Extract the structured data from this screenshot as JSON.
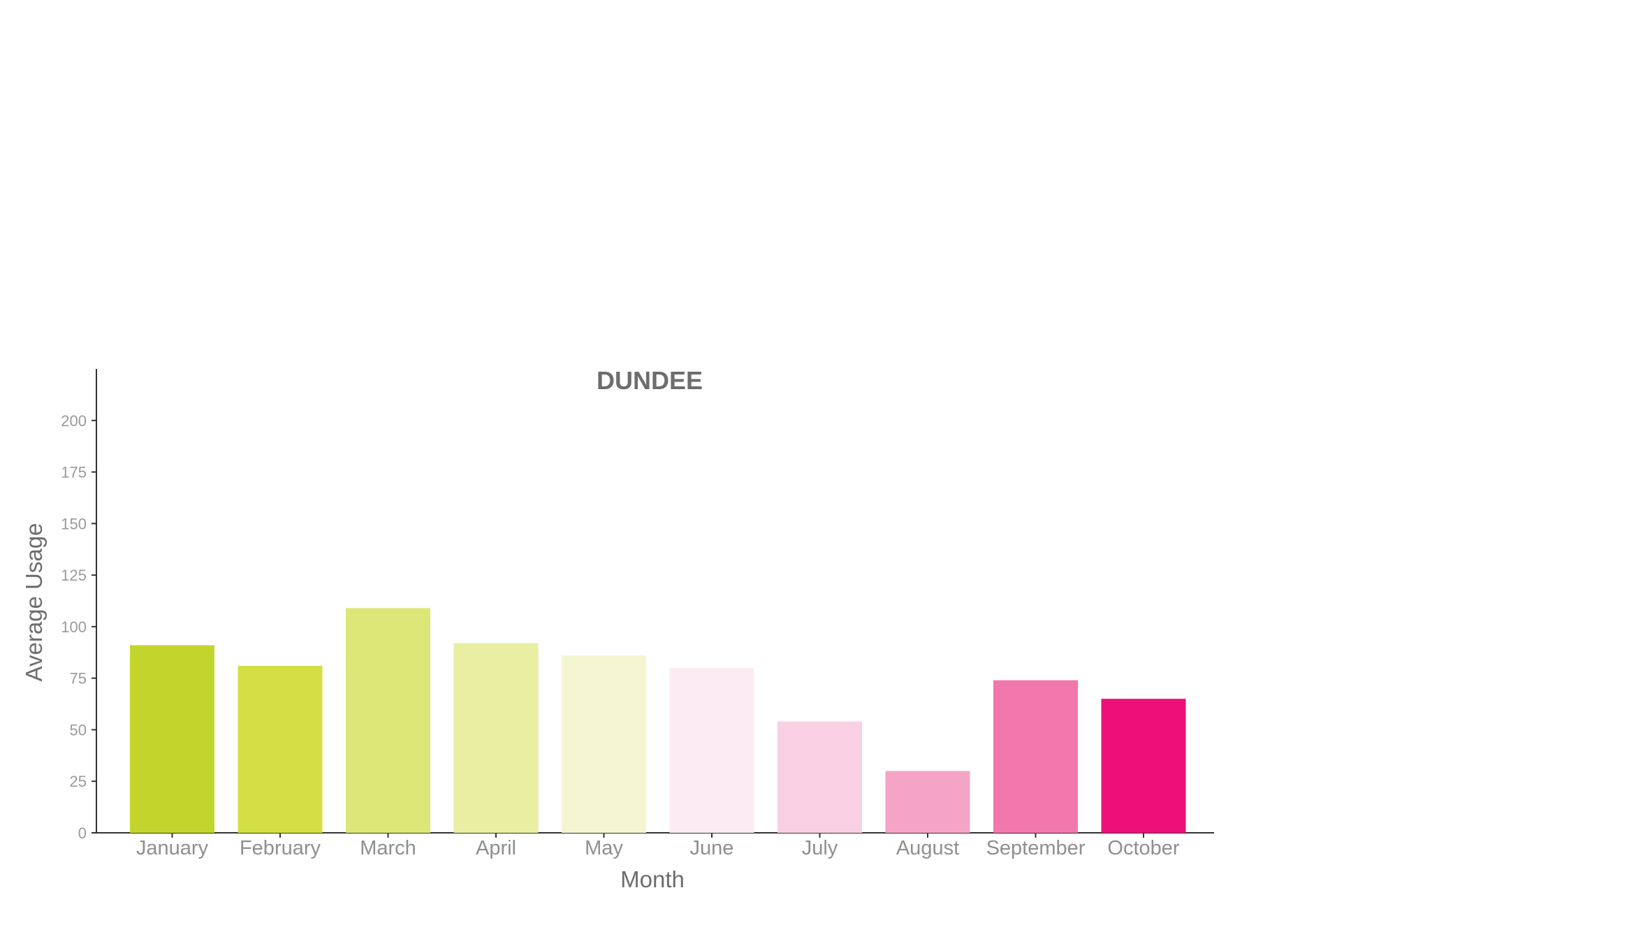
{
  "chart_data": {
    "type": "bar",
    "title": "DUNDEE",
    "xlabel": "Month",
    "ylabel": "Average Usage",
    "categories": [
      "January",
      "February",
      "March",
      "April",
      "May",
      "June",
      "July",
      "August",
      "September",
      "October"
    ],
    "values": [
      91,
      81,
      109,
      92,
      86,
      80,
      54,
      30,
      74,
      65
    ],
    "colors": [
      "#c3d52d",
      "#d3df45",
      "#dde777",
      "#e9eea3",
      "#f4f6d2",
      "#fcebf2",
      "#f9d0e3",
      "#f4a5c7",
      "#f177ac",
      "#ec1078"
    ],
    "yticks": [
      0,
      25,
      50,
      75,
      100,
      125,
      150,
      175,
      200
    ],
    "ylim": [
      0,
      225
    ],
    "grid": false,
    "legend": "none"
  }
}
